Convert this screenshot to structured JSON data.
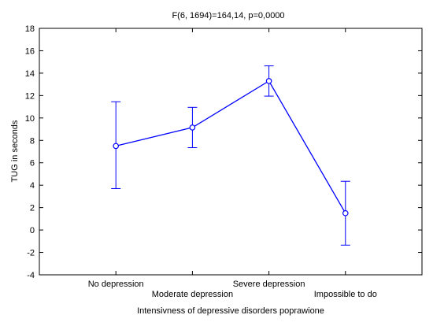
{
  "chart_data": {
    "type": "line",
    "title": "F(6, 1694)=164,14, p=0,0000",
    "xlabel": "Intensivness of depressive disorders poprawione",
    "ylabel": "TUG in seconds",
    "categories": [
      "No depression",
      "Moderate depression",
      "Severe depression",
      "Impossible to do"
    ],
    "series": [
      {
        "values": [
          7.5,
          9.15,
          13.3,
          1.5
        ],
        "error_lower": [
          3.7,
          7.35,
          11.95,
          -1.35
        ],
        "error_upper": [
          11.45,
          10.95,
          14.65,
          4.35
        ]
      }
    ],
    "ylim": [
      -4,
      18
    ],
    "yticks": [
      "18",
      "16",
      "14",
      "12",
      "10",
      "8",
      "6",
      "4",
      "2",
      "0",
      "-2",
      "-4"
    ],
    "grid": false,
    "legend": "none",
    "colors": {
      "line": "#0000ff",
      "axis": "#000000",
      "background": "#ffffff"
    }
  }
}
